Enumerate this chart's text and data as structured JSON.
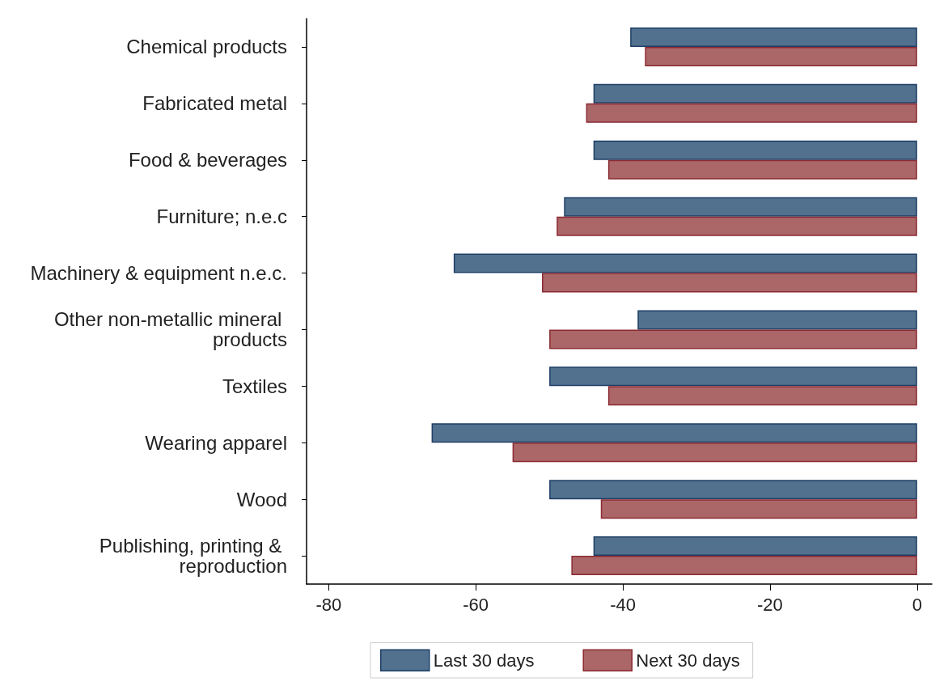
{
  "chart_data": {
    "type": "bar",
    "orientation": "horizontal",
    "categories": [
      "Chemical products",
      "Fabricated metal",
      "Food & beverages",
      "Furniture; n.e.c",
      "Machinery & equipment n.e.c.",
      "Other non-metallic mineral products",
      "Textiles",
      "Wearing apparel",
      "Wood",
      "Publishing, printing & reproduction"
    ],
    "series": [
      {
        "name": "Last 30 days",
        "color": "#51718f",
        "values": [
          -39,
          -44,
          -44,
          -48,
          -63,
          -38,
          -50,
          -66,
          -50,
          -44
        ]
      },
      {
        "name": "Next 30 days",
        "color": "#ab6668",
        "values": [
          -37,
          -45,
          -42,
          -49,
          -51,
          -50,
          -42,
          -55,
          -43,
          -47
        ]
      }
    ],
    "xlim": [
      -83,
      2
    ],
    "xticks": [
      -80,
      -60,
      -40,
      -20,
      0
    ],
    "grid": false,
    "legend": "bottom"
  }
}
